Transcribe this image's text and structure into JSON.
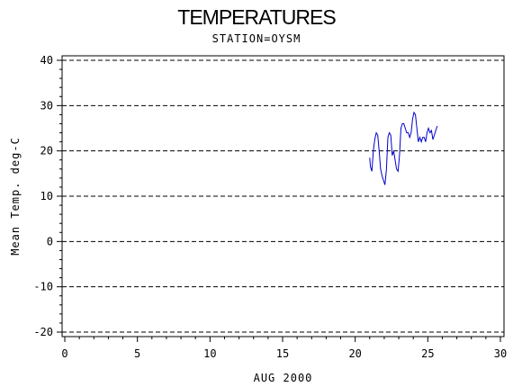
{
  "chart_data": {
    "type": "line",
    "title": "TEMPERATURES",
    "subtitle": "STATION=OYSM",
    "xlabel": "AUG 2000",
    "ylabel": "Mean Temp. deg-C",
    "xlim": [
      0,
      30
    ],
    "ylim": [
      -20,
      40
    ],
    "x_ticks": [
      0,
      5,
      10,
      15,
      20,
      25,
      30
    ],
    "y_ticks": [
      -20,
      -10,
      0,
      10,
      20,
      30,
      40
    ],
    "x_tick_labels": [
      "0",
      "5",
      "10",
      "15",
      "20",
      "25",
      "30"
    ],
    "y_tick_labels": [
      "-20",
      "-10",
      "0",
      "10",
      "20",
      "30",
      "40"
    ],
    "grid": "horizontal dashed",
    "line_color": "#0000cc",
    "series": [
      {
        "x": [
          21.0,
          21.05,
          21.15,
          21.25,
          21.35,
          21.45,
          21.55,
          21.65,
          21.75,
          21.85,
          21.95,
          22.05,
          22.15,
          22.25,
          22.35,
          22.45,
          22.55,
          22.65,
          22.75,
          22.85,
          22.95,
          23.05,
          23.15,
          23.25,
          23.35,
          23.45,
          23.55,
          23.65,
          23.75,
          23.85,
          23.95,
          24.05,
          24.15,
          24.25,
          24.35,
          24.45,
          24.55,
          24.65,
          24.75,
          24.85,
          24.95,
          25.05,
          25.15,
          25.25,
          25.35,
          25.45,
          25.55,
          25.65
        ],
        "y": [
          18.5,
          16.5,
          15.5,
          20.0,
          22.5,
          24.0,
          23.5,
          20.0,
          16.0,
          14.5,
          13.5,
          12.5,
          16.0,
          23.0,
          24.0,
          23.5,
          19.0,
          20.0,
          18.0,
          16.0,
          15.5,
          19.0,
          25.0,
          26.0,
          26.0,
          25.0,
          24.0,
          24.0,
          23.0,
          24.0,
          27.0,
          28.5,
          28.0,
          25.0,
          22.0,
          23.0,
          22.0,
          23.0,
          23.0,
          22.0,
          24.0,
          25.0,
          24.0,
          24.5,
          22.5,
          23.5,
          24.5,
          25.5
        ]
      }
    ]
  }
}
